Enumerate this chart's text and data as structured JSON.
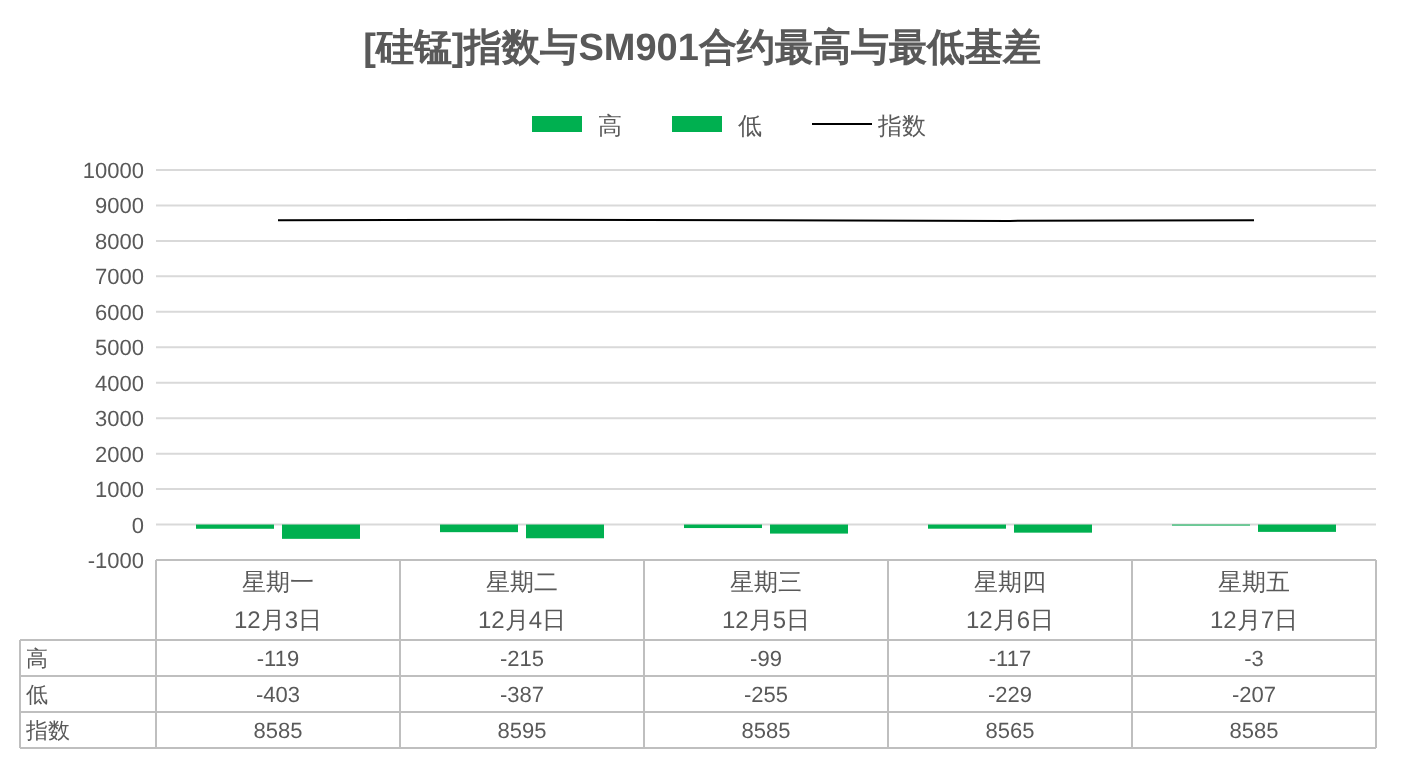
{
  "chart_data": {
    "type": "bar",
    "title": "[硅锰]指数与SM901合约最高与最低基差",
    "categories": [
      "星期一\n12月3日",
      "星期二\n12月4日",
      "星期三\n12月5日",
      "星期四\n12月6日",
      "星期五\n12月7日"
    ],
    "series": [
      {
        "name": "高",
        "color": "#00b050",
        "values": [
          -119,
          -215,
          -99,
          -117,
          -3
        ]
      },
      {
        "name": "低",
        "color": "#00b050",
        "values": [
          -403,
          -387,
          -255,
          -229,
          -207
        ]
      },
      {
        "name": "指数",
        "type": "line",
        "color": "#000000",
        "values": [
          8585,
          8595,
          8585,
          8565,
          8585
        ]
      }
    ],
    "ylim": [
      -1000,
      10000
    ],
    "yticks": [
      -1000,
      0,
      1000,
      2000,
      3000,
      4000,
      5000,
      6000,
      7000,
      8000,
      9000,
      10000
    ],
    "grid": "y",
    "legend": "top",
    "data_labels": true
  }
}
